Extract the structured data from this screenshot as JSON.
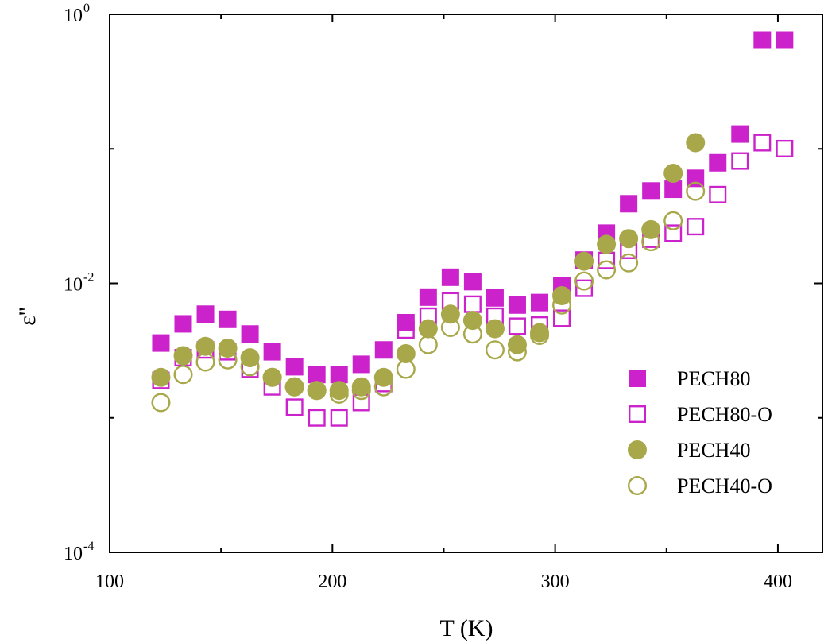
{
  "chart_data": {
    "type": "scatter",
    "title": "",
    "xlabel": "T (K)",
    "ylabel": "ε''",
    "xlim": [
      100,
      420
    ],
    "ylim": [
      0.0001,
      1
    ],
    "yscale": "log",
    "x_ticks": [
      "100",
      "200",
      "300",
      "400"
    ],
    "y_ticks": [
      {
        "base": "10",
        "exp": "-4",
        "value": 0.0001
      },
      {
        "base": "10",
        "exp": "-2",
        "value": 0.01
      },
      {
        "base": "10",
        "exp": "0",
        "value": 1
      }
    ],
    "grid": false,
    "legend_position": "right",
    "series": [
      {
        "name": "PECH80",
        "marker": "filled-square",
        "color": "#cc22cc",
        "x": [
          123,
          133,
          143,
          153,
          163,
          173,
          183,
          193,
          203,
          213,
          223,
          233,
          243,
          253,
          263,
          273,
          283,
          293,
          303,
          313,
          323,
          333,
          343,
          353,
          363,
          373,
          383,
          393,
          403
        ],
        "y": [
          0.0036,
          0.005,
          0.0059,
          0.0054,
          0.0042,
          0.0031,
          0.0024,
          0.0021,
          0.0021,
          0.0025,
          0.0032,
          0.0051,
          0.0079,
          0.0111,
          0.0103,
          0.0078,
          0.0069,
          0.0072,
          0.0096,
          0.0149,
          0.0236,
          0.0391,
          0.0486,
          0.0501,
          0.0604,
          0.0788,
          0.1289,
          0.6427,
          0.6427
        ]
      },
      {
        "name": "PECH80-O",
        "marker": "open-square",
        "color": "#cc22cc",
        "x": [
          123,
          133,
          143,
          153,
          163,
          173,
          183,
          193,
          203,
          213,
          223,
          233,
          243,
          253,
          263,
          273,
          283,
          293,
          303,
          313,
          323,
          333,
          343,
          353,
          363,
          373,
          383,
          393,
          403
        ],
        "y": [
          0.0019,
          0.0028,
          0.0032,
          0.0031,
          0.0023,
          0.0017,
          0.0012,
          0.001,
          0.001,
          0.0013,
          0.0018,
          0.0045,
          0.0057,
          0.0074,
          0.007,
          0.0057,
          0.0048,
          0.0049,
          0.0055,
          0.0092,
          0.0148,
          0.0176,
          0.0213,
          0.0236,
          0.0264,
          0.0457,
          0.0812,
          0.1111,
          0.1004
        ]
      },
      {
        "name": "PECH40",
        "marker": "filled-circle",
        "color": "#a8a84a",
        "x": [
          123,
          133,
          143,
          153,
          163,
          173,
          183,
          193,
          203,
          213,
          223,
          233,
          243,
          253,
          263,
          273,
          283,
          293,
          303,
          313,
          323,
          333,
          343,
          353,
          363
        ],
        "y": [
          0.002,
          0.0029,
          0.0034,
          0.0033,
          0.0028,
          0.002,
          0.0017,
          0.0016,
          0.0016,
          0.0017,
          0.002,
          0.003,
          0.0046,
          0.0059,
          0.0053,
          0.0046,
          0.0035,
          0.0043,
          0.0081,
          0.0146,
          0.0195,
          0.0215,
          0.0251,
          0.0658,
          0.1111
        ]
      },
      {
        "name": "PECH40-O",
        "marker": "open-circle",
        "color": "#a8a84a",
        "x": [
          123,
          133,
          143,
          153,
          163,
          173,
          183,
          193,
          203,
          213,
          223,
          233,
          243,
          253,
          263,
          273,
          283,
          293,
          303,
          313,
          323,
          333,
          343,
          353,
          363
        ],
        "y": [
          0.0013,
          0.0021,
          0.0026,
          0.0027,
          0.0024,
          0.002,
          0.0017,
          0.0016,
          0.0015,
          0.0016,
          0.0017,
          0.0023,
          0.0035,
          0.0047,
          0.0042,
          0.0032,
          0.0031,
          0.0041,
          0.0069,
          0.0104,
          0.0126,
          0.0142,
          0.0204,
          0.0292,
          0.0484
        ]
      }
    ]
  }
}
